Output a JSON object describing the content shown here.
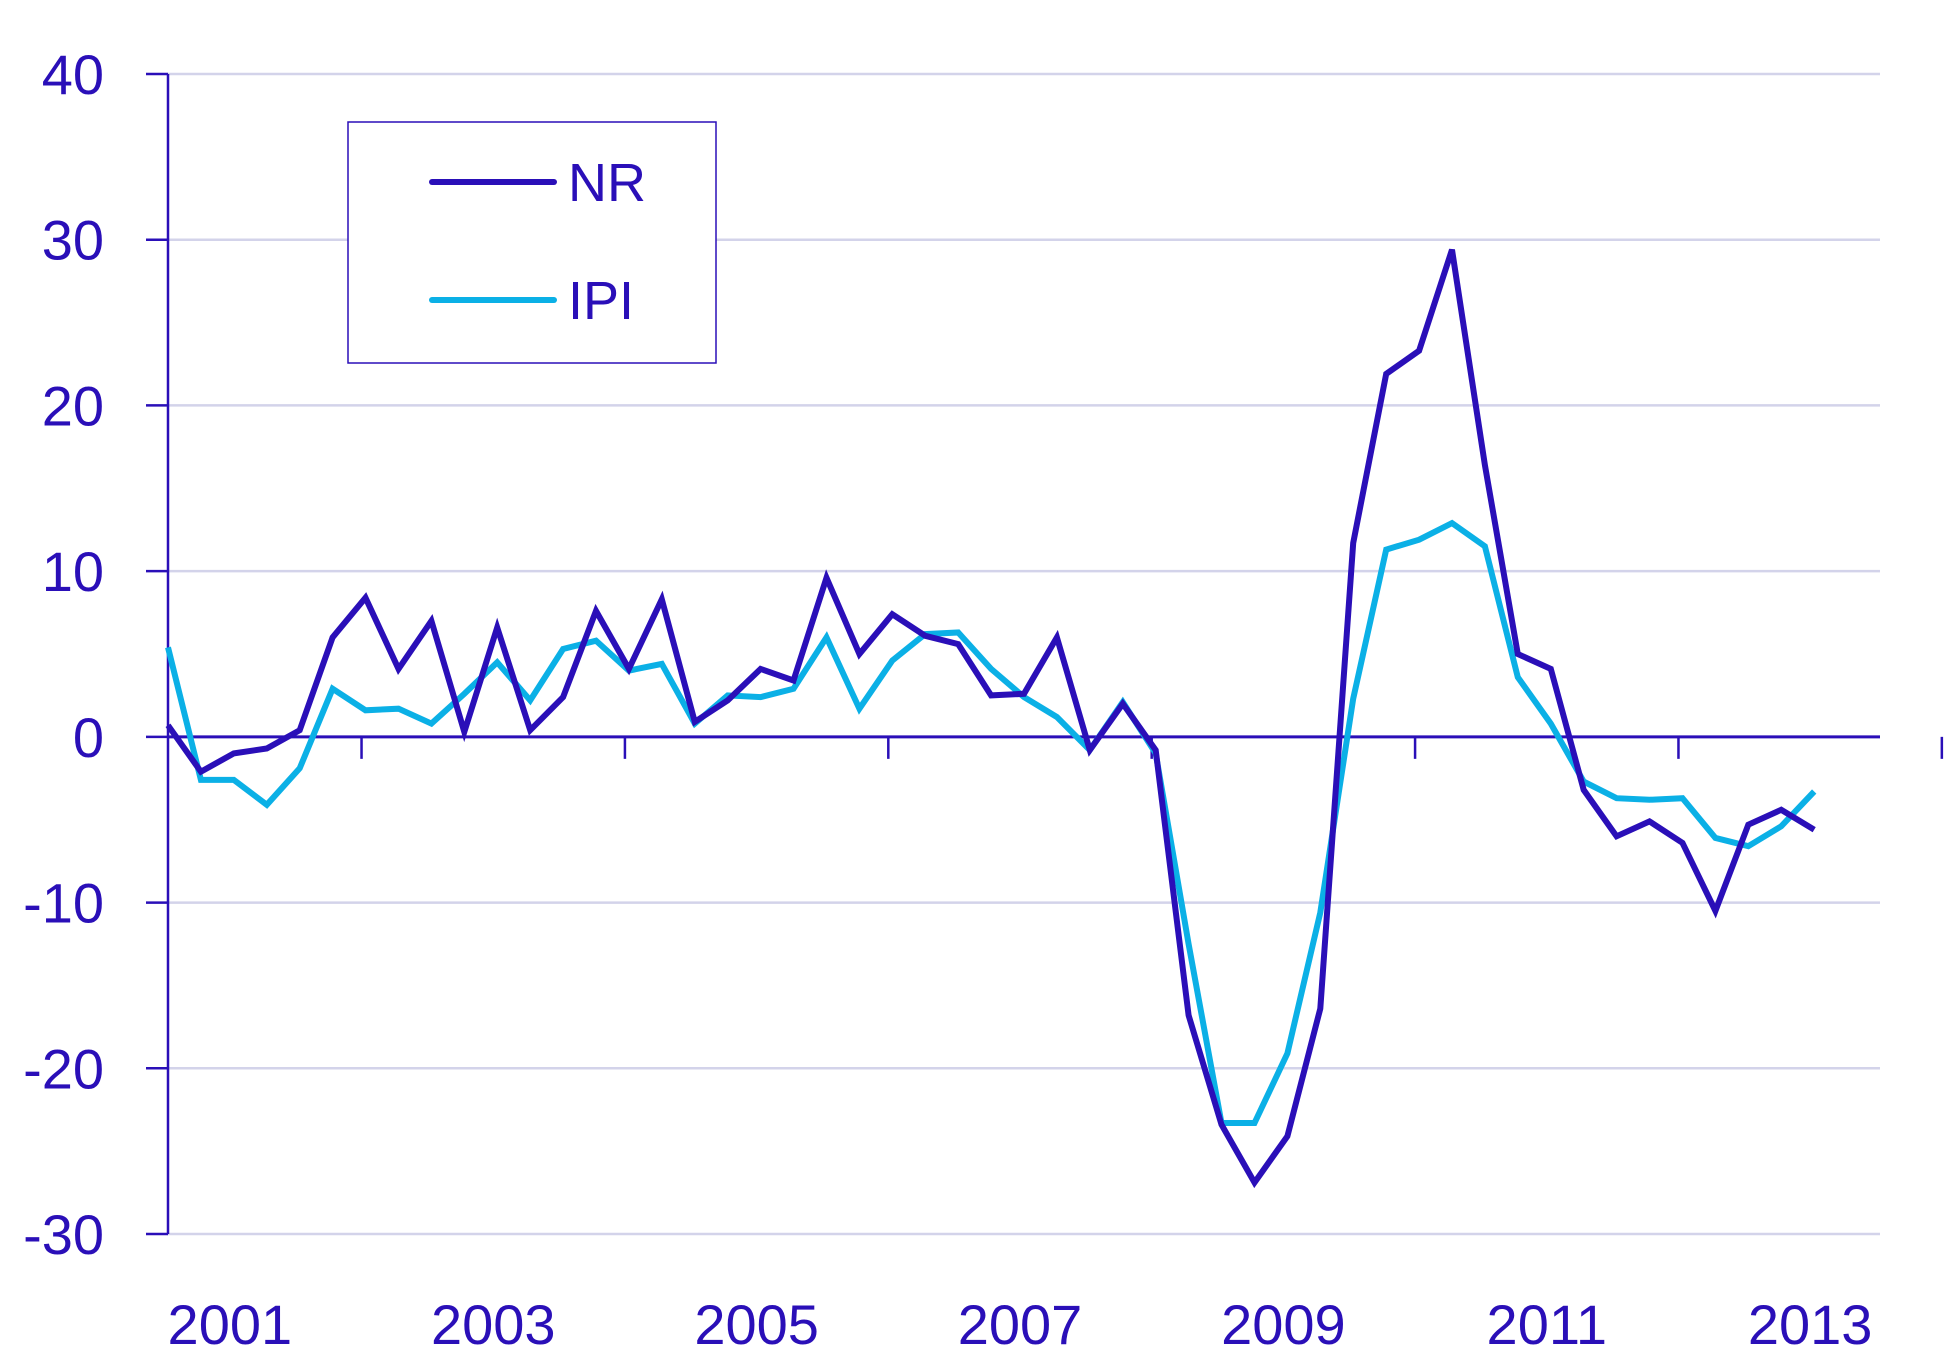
{
  "chart_data": {
    "type": "line",
    "title": "",
    "xlabel": "",
    "ylabel": "",
    "ylim": [
      -30,
      40
    ],
    "yticks": [
      -30,
      -20,
      -10,
      0,
      10,
      20,
      30,
      40
    ],
    "ytick_labels": [
      "-30",
      "-20",
      "-10",
      "0",
      "10",
      "20",
      "30",
      "40"
    ],
    "xlim": [
      2000.5,
      2013.5
    ],
    "xticks": [
      2001,
      2003,
      2005,
      2007,
      2009,
      2011,
      2013
    ],
    "xtick_labels": [
      "2001",
      "2003",
      "2005",
      "2007",
      "2009",
      "2011",
      "2013"
    ],
    "minor_xticks": [
      2002,
      2004,
      2006,
      2008,
      2010,
      2012,
      2014
    ],
    "grid": true,
    "legend_position": "top-left",
    "series": [
      {
        "name": "NR",
        "color": "#2a0fb8",
        "x": [
          2000.5,
          2000.75,
          2001,
          2001.25,
          2001.5,
          2001.75,
          2002,
          2002.25,
          2002.5,
          2002.75,
          2003,
          2003.25,
          2003.5,
          2003.75,
          2004,
          2004.25,
          2004.5,
          2004.75,
          2005,
          2005.25,
          2005.5,
          2005.75,
          2006,
          2006.25,
          2006.5,
          2006.75,
          2007,
          2007.25,
          2007.5,
          2007.75,
          2008,
          2008.25,
          2008.5,
          2008.75,
          2009,
          2009.25,
          2009.5,
          2009.75,
          2010,
          2010.25,
          2010.5,
          2010.75,
          2011,
          2011.25,
          2011.5,
          2011.75,
          2012,
          2012.25,
          2012.5,
          2012.75,
          2013
        ],
        "values": [
          0.7,
          -2.1,
          -1.0,
          -0.7,
          0.4,
          6.0,
          8.4,
          4.1,
          7.0,
          0.3,
          6.6,
          0.4,
          2.4,
          7.6,
          4.1,
          8.3,
          0.9,
          2.2,
          4.1,
          3.4,
          9.6,
          5.0,
          7.4,
          6.1,
          5.6,
          2.5,
          2.6,
          6.0,
          -0.8,
          2.0,
          -0.8,
          -16.8,
          -23.4,
          -26.9,
          -24.1,
          -16.4,
          11.7,
          21.9,
          23.3,
          29.4,
          16.4,
          5.0,
          4.1,
          -3.2,
          -6.0,
          -5.1,
          -6.4,
          -10.5,
          -5.3,
          -4.4,
          -5.6
        ]
      },
      {
        "name": "IPI",
        "color": "#0bb0e6",
        "x": [
          2000.5,
          2000.75,
          2001,
          2001.25,
          2001.5,
          2001.75,
          2002,
          2002.25,
          2002.5,
          2002.75,
          2003,
          2003.25,
          2003.5,
          2003.75,
          2004,
          2004.25,
          2004.5,
          2004.75,
          2005,
          2005.25,
          2005.5,
          2005.75,
          2006,
          2006.25,
          2006.5,
          2006.75,
          2007,
          2007.25,
          2007.5,
          2007.75,
          2008,
          2008.25,
          2008.5,
          2008.75,
          2009,
          2009.25,
          2009.5,
          2009.75,
          2010,
          2010.25,
          2010.5,
          2010.75,
          2011,
          2011.25,
          2011.5,
          2011.75,
          2012,
          2012.25,
          2012.5,
          2012.75,
          2013
        ],
        "values": [
          5.4,
          -2.6,
          -2.6,
          -4.1,
          -1.9,
          2.9,
          1.6,
          1.7,
          0.8,
          2.6,
          4.5,
          2.2,
          5.3,
          5.8,
          4.0,
          4.4,
          0.8,
          2.5,
          2.4,
          2.9,
          6.0,
          1.7,
          4.6,
          6.2,
          6.3,
          4.1,
          2.4,
          1.2,
          -0.8,
          2.1,
          -1.0,
          -12.5,
          -23.3,
          -23.3,
          -19.1,
          -10.6,
          2.3,
          11.3,
          11.9,
          12.9,
          11.5,
          3.6,
          0.8,
          -2.7,
          -3.7,
          -3.8,
          -3.7,
          -6.1,
          -6.6,
          -5.4,
          -3.3
        ]
      }
    ]
  }
}
